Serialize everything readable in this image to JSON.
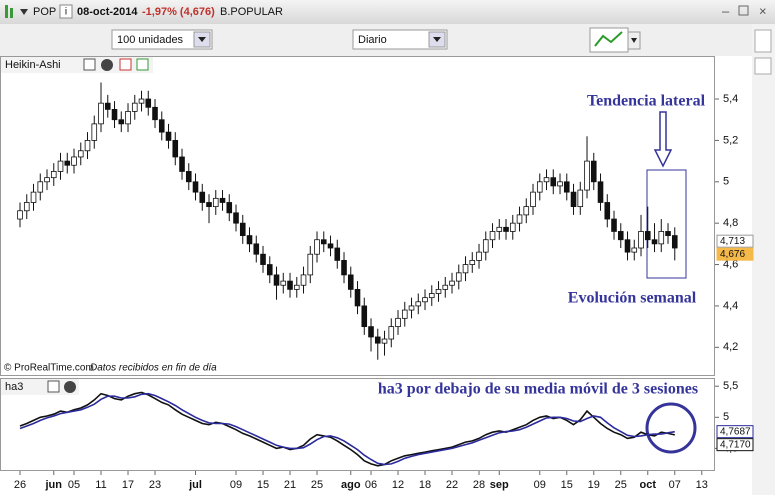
{
  "header": {
    "symbol": "POP",
    "date": "08-oct-2014",
    "change": "-1,97% (4,676)",
    "name": "B.POPULAR"
  },
  "toolbar": {
    "quantity": "100 unidades",
    "period": "Diario"
  },
  "chart_data": [
    {
      "type": "candlestick",
      "title": "Heikin-Ashi",
      "up_color": "#ffffff",
      "down_color": "#111111",
      "xlim": [
        -1.78,
        102.96
      ],
      "ylim": [
        4.1,
        5.55
      ],
      "yticks": [
        {
          "value": 5.4,
          "label": "5,4"
        },
        {
          "value": 5.2,
          "label": "5,2"
        },
        5,
        {
          "value": 4.8,
          "label": "4,8"
        },
        {
          "value": 4.6,
          "label": "4,6"
        },
        {
          "value": 4.4,
          "label": "4,4"
        },
        {
          "value": 4.2,
          "label": "4,2"
        }
      ],
      "price_tags": [
        {
          "value": 4.713,
          "label": "4,713",
          "color": "#e8e8e8"
        },
        {
          "value": 4.676,
          "label": "4,676",
          "color": "#f5b94a"
        }
      ],
      "annotations": [
        "Tendencia lateral",
        "Evolución semanal"
      ],
      "source": "© ProRealTime.com",
      "note": "Datos recibidos en fin de día",
      "candles": [
        [
          4.82,
          4.9,
          4.78,
          4.86
        ],
        [
          4.86,
          4.94,
          4.82,
          4.9
        ],
        [
          4.9,
          4.99,
          4.86,
          4.95
        ],
        [
          4.95,
          5.04,
          4.91,
          5.0
        ],
        [
          5.0,
          5.06,
          4.96,
          5.02
        ],
        [
          5.02,
          5.09,
          4.98,
          5.05
        ],
        [
          5.05,
          5.14,
          5.01,
          5.1
        ],
        [
          5.1,
          5.14,
          5.04,
          5.08
        ],
        [
          5.08,
          5.16,
          5.04,
          5.12
        ],
        [
          5.12,
          5.19,
          5.08,
          5.15
        ],
        [
          5.15,
          5.24,
          5.11,
          5.2
        ],
        [
          5.2,
          5.32,
          5.16,
          5.28
        ],
        [
          5.28,
          5.48,
          5.24,
          5.38
        ],
        [
          5.38,
          5.42,
          5.31,
          5.35
        ],
        [
          5.35,
          5.39,
          5.26,
          5.3
        ],
        [
          5.3,
          5.34,
          5.24,
          5.28
        ],
        [
          5.28,
          5.38,
          5.24,
          5.34
        ],
        [
          5.34,
          5.42,
          5.3,
          5.38
        ],
        [
          5.38,
          5.44,
          5.34,
          5.4
        ],
        [
          5.4,
          5.44,
          5.32,
          5.36
        ],
        [
          5.36,
          5.4,
          5.26,
          5.3
        ],
        [
          5.3,
          5.34,
          5.2,
          5.24
        ],
        [
          5.24,
          5.28,
          5.16,
          5.2
        ],
        [
          5.2,
          5.24,
          5.08,
          5.12
        ],
        [
          5.12,
          5.16,
          5.01,
          5.05
        ],
        [
          5.05,
          5.09,
          4.96,
          5.0
        ],
        [
          5.0,
          5.04,
          4.91,
          4.95
        ],
        [
          4.95,
          4.99,
          4.86,
          4.9
        ],
        [
          4.9,
          4.94,
          4.8,
          4.88
        ],
        [
          4.88,
          4.96,
          4.84,
          4.92
        ],
        [
          4.92,
          4.96,
          4.86,
          4.9
        ],
        [
          4.9,
          4.94,
          4.81,
          4.85
        ],
        [
          4.85,
          4.89,
          4.76,
          4.8
        ],
        [
          4.8,
          4.84,
          4.7,
          4.74
        ],
        [
          4.74,
          4.78,
          4.66,
          4.7
        ],
        [
          4.7,
          4.74,
          4.61,
          4.65
        ],
        [
          4.65,
          4.69,
          4.56,
          4.6
        ],
        [
          4.6,
          4.64,
          4.51,
          4.55
        ],
        [
          4.55,
          4.59,
          4.43,
          4.5
        ],
        [
          4.5,
          4.56,
          4.46,
          4.52
        ],
        [
          4.52,
          4.56,
          4.44,
          4.48
        ],
        [
          4.48,
          4.54,
          4.44,
          4.5
        ],
        [
          4.5,
          4.59,
          4.46,
          4.55
        ],
        [
          4.55,
          4.69,
          4.51,
          4.65
        ],
        [
          4.65,
          4.76,
          4.61,
          4.72
        ],
        [
          4.72,
          4.76,
          4.66,
          4.7
        ],
        [
          4.7,
          4.74,
          4.64,
          4.68
        ],
        [
          4.68,
          4.72,
          4.58,
          4.62
        ],
        [
          4.62,
          4.66,
          4.51,
          4.55
        ],
        [
          4.55,
          4.59,
          4.44,
          4.48
        ],
        [
          4.48,
          4.52,
          4.36,
          4.4
        ],
        [
          4.4,
          4.44,
          4.26,
          4.3
        ],
        [
          4.3,
          4.34,
          4.18,
          4.25
        ],
        [
          4.25,
          4.29,
          4.14,
          4.22
        ],
        [
          4.22,
          4.28,
          4.16,
          4.24
        ],
        [
          4.24,
          4.34,
          4.2,
          4.3
        ],
        [
          4.3,
          4.38,
          4.26,
          4.34
        ],
        [
          4.34,
          4.42,
          4.3,
          4.38
        ],
        [
          4.38,
          4.44,
          4.34,
          4.4
        ],
        [
          4.4,
          4.46,
          4.36,
          4.42
        ],
        [
          4.42,
          4.48,
          4.38,
          4.44
        ],
        [
          4.44,
          4.5,
          4.4,
          4.46
        ],
        [
          4.46,
          4.52,
          4.42,
          4.48
        ],
        [
          4.48,
          4.54,
          4.44,
          4.5
        ],
        [
          4.5,
          4.56,
          4.46,
          4.52
        ],
        [
          4.52,
          4.6,
          4.48,
          4.56
        ],
        [
          4.56,
          4.64,
          4.52,
          4.6
        ],
        [
          4.6,
          4.66,
          4.56,
          4.62
        ],
        [
          4.62,
          4.7,
          4.58,
          4.66
        ],
        [
          4.66,
          4.76,
          4.62,
          4.72
        ],
        [
          4.72,
          4.8,
          4.68,
          4.76
        ],
        [
          4.76,
          4.82,
          4.72,
          4.78
        ],
        [
          4.78,
          4.82,
          4.72,
          4.76
        ],
        [
          4.76,
          4.84,
          4.72,
          4.8
        ],
        [
          4.8,
          4.88,
          4.76,
          4.84
        ],
        [
          4.84,
          4.92,
          4.8,
          4.88
        ],
        [
          4.88,
          4.99,
          4.84,
          4.95
        ],
        [
          4.95,
          5.04,
          4.91,
          5.0
        ],
        [
          5.0,
          5.06,
          4.96,
          5.02
        ],
        [
          5.02,
          5.06,
          4.94,
          4.98
        ],
        [
          4.98,
          5.04,
          4.94,
          5.0
        ],
        [
          5.0,
          5.04,
          4.91,
          4.95
        ],
        [
          4.95,
          4.99,
          4.84,
          4.88
        ],
        [
          4.88,
          5.0,
          4.84,
          4.96
        ],
        [
          4.96,
          5.22,
          4.92,
          5.1
        ],
        [
          5.1,
          5.14,
          4.96,
          5.0
        ],
        [
          5.0,
          5.04,
          4.86,
          4.9
        ],
        [
          4.9,
          4.94,
          4.78,
          4.82
        ],
        [
          4.82,
          4.86,
          4.72,
          4.76
        ],
        [
          4.76,
          4.8,
          4.68,
          4.72
        ],
        [
          4.72,
          4.76,
          4.62,
          4.66
        ],
        [
          4.66,
          4.72,
          4.62,
          4.68
        ],
        [
          4.68,
          4.84,
          4.64,
          4.76
        ],
        [
          4.76,
          4.88,
          4.68,
          4.72
        ],
        [
          4.72,
          4.8,
          4.66,
          4.7
        ],
        [
          4.7,
          4.82,
          4.66,
          4.76
        ],
        [
          4.76,
          4.8,
          4.7,
          4.74
        ],
        [
          4.74,
          4.78,
          4.62,
          4.68
        ]
      ]
    },
    {
      "type": "line",
      "title": "ha3",
      "xlim": [
        -1.78,
        102.96
      ],
      "xticks": [
        {
          "value": 0,
          "label": "26"
        },
        {
          "value": 5,
          "label": "jun"
        },
        {
          "value": 8,
          "label": "05"
        },
        {
          "value": 12,
          "label": "11"
        },
        {
          "value": 16,
          "label": "17"
        },
        {
          "value": 20,
          "label": "23"
        },
        {
          "value": 26,
          "label": "jul"
        },
        {
          "value": 32,
          "label": "09"
        },
        {
          "value": 36,
          "label": "15"
        },
        {
          "value": 40,
          "label": "21"
        },
        {
          "value": 44,
          "label": "25"
        },
        {
          "value": 49,
          "label": "ago"
        },
        {
          "value": 52,
          "label": "06"
        },
        {
          "value": 56,
          "label": "12"
        },
        {
          "value": 60,
          "label": "18"
        },
        {
          "value": 64,
          "label": "22"
        },
        {
          "value": 68,
          "label": "28"
        },
        {
          "value": 71,
          "label": "sep"
        },
        {
          "value": 77,
          "label": "09"
        },
        {
          "value": 81,
          "label": "15"
        },
        {
          "value": 85,
          "label": "19"
        },
        {
          "value": 89,
          "label": "25"
        },
        {
          "value": 93,
          "label": "oct"
        },
        {
          "value": 97,
          "label": "07"
        },
        {
          "value": 101,
          "label": "13"
        }
      ],
      "ylim": [
        4.2,
        5.6
      ],
      "yticks": [
        {
          "value": 5.5,
          "label": "5,5"
        },
        5,
        {
          "value": 4.5,
          "label": "4,5"
        }
      ],
      "price_tags": [
        {
          "value": 4.7687,
          "label": "4,7687",
          "color": "#2b2b9e"
        },
        {
          "value": 4.717,
          "label": "4,7170",
          "color": "#111111"
        }
      ],
      "annotation": "ha3 por debajo de su media móvil de 3 sesiones",
      "series": [
        {
          "color": "#111111",
          "values": [
            4.86,
            4.9,
            4.95,
            5.0,
            5.02,
            5.05,
            5.1,
            5.08,
            5.12,
            5.15,
            5.2,
            5.28,
            5.38,
            5.35,
            5.3,
            5.28,
            5.34,
            5.38,
            5.4,
            5.36,
            5.3,
            5.24,
            5.2,
            5.12,
            5.05,
            5.0,
            4.95,
            4.9,
            4.88,
            4.92,
            4.9,
            4.85,
            4.8,
            4.74,
            4.7,
            4.65,
            4.6,
            4.55,
            4.5,
            4.52,
            4.48,
            4.5,
            4.55,
            4.65,
            4.72,
            4.7,
            4.68,
            4.62,
            4.55,
            4.48,
            4.4,
            4.3,
            4.25,
            4.22,
            4.24,
            4.3,
            4.34,
            4.38,
            4.4,
            4.42,
            4.44,
            4.46,
            4.48,
            4.5,
            4.52,
            4.56,
            4.6,
            4.62,
            4.66,
            4.72,
            4.76,
            4.78,
            4.76,
            4.8,
            4.84,
            4.88,
            4.95,
            5.0,
            5.02,
            4.98,
            5.0,
            4.95,
            4.88,
            4.96,
            5.1,
            5.0,
            4.9,
            4.82,
            4.76,
            4.72,
            4.66,
            4.68,
            4.76,
            4.72,
            4.7,
            4.76,
            4.74,
            4.717
          ]
        },
        {
          "color": "#2b2b9e",
          "values": [
            4.82,
            4.86,
            4.9,
            4.95,
            4.99,
            5.02,
            5.06,
            5.08,
            5.1,
            5.12,
            5.16,
            5.21,
            5.29,
            5.34,
            5.34,
            5.31,
            5.31,
            5.33,
            5.37,
            5.38,
            5.35,
            5.3,
            5.25,
            5.19,
            5.12,
            5.06,
            5.0,
            4.95,
            4.91,
            4.9,
            4.9,
            4.89,
            4.85,
            4.8,
            4.75,
            4.7,
            4.65,
            4.6,
            4.55,
            4.52,
            4.5,
            4.5,
            4.51,
            4.57,
            4.64,
            4.69,
            4.7,
            4.67,
            4.62,
            4.55,
            4.48,
            4.39,
            4.32,
            4.26,
            4.24,
            4.25,
            4.29,
            4.34,
            4.37,
            4.4,
            4.42,
            4.44,
            4.46,
            4.48,
            4.5,
            4.53,
            4.56,
            4.59,
            4.63,
            4.67,
            4.71,
            4.75,
            4.77,
            4.78,
            4.8,
            4.84,
            4.89,
            4.94,
            4.99,
            5.0,
            5.0,
            4.98,
            4.94,
            4.93,
            4.98,
            5.02,
            5.0,
            4.91,
            4.83,
            4.77,
            4.71,
            4.69,
            4.7,
            4.72,
            4.73,
            4.73,
            4.75,
            4.7687
          ]
        }
      ]
    }
  ]
}
